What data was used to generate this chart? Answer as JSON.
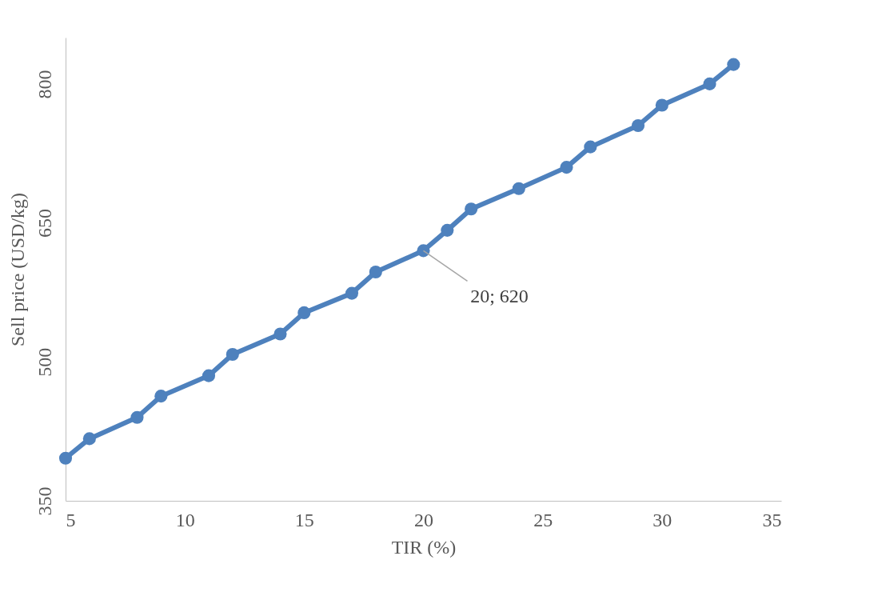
{
  "chart_data": {
    "type": "line",
    "xlabel": "TIR (%)",
    "ylabel": "Sell price (USD/kg)",
    "x": [
      5,
      6,
      8,
      9,
      11,
      12,
      14,
      15,
      17,
      18,
      20,
      21,
      22,
      24,
      26,
      27,
      29,
      30,
      32,
      33
    ],
    "series": [
      {
        "color": "#4e81bd",
        "values": [
          396,
          417,
          440,
          463,
          485,
          508,
          530,
          553,
          574,
          597,
          620,
          642,
          665,
          687,
          710,
          732,
          755,
          777,
          800,
          821
        ]
      }
    ],
    "xlim": [
      5,
      35
    ],
    "xticks": [
      5,
      10,
      15,
      20,
      25,
      30,
      35
    ],
    "ylim": [
      350,
      850
    ],
    "yticks": [
      350,
      500,
      650,
      800
    ],
    "annotations": [
      {
        "text": "20; 620",
        "x": 20,
        "y": 620
      }
    ],
    "marker": "circle",
    "line_style": "solid",
    "grid": false
  }
}
